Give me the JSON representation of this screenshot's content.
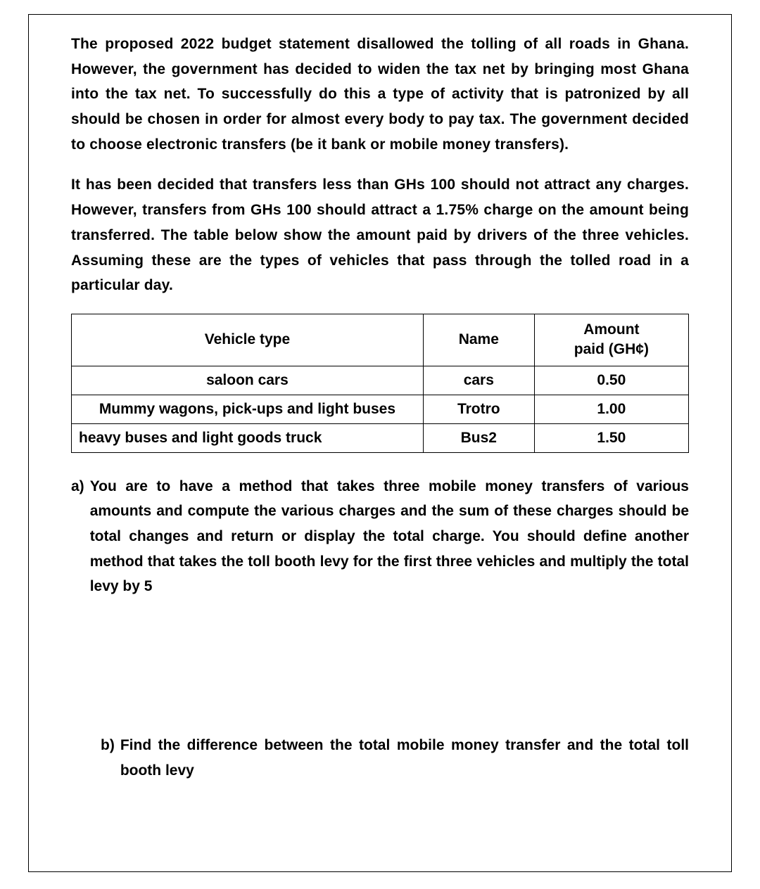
{
  "paragraph1": "The proposed 2022 budget statement disallowed the tolling of all roads in Ghana. However, the government has decided to widen the tax net by bringing most Ghana into the tax net. To successfully do this a type of activity that is patronized by all should be chosen in order for almost every body to pay tax. The government decided to choose electronic transfers (be it bank or mobile money transfers).",
  "paragraph2": "It has been decided that transfers less than GHs 100 should not attract any charges. However, transfers from GHs 100 should attract a 1.75% charge on the amount being transferred. The table below show the amount paid by drivers of the three vehicles. Assuming these are the types of vehicles that pass through the tolled road in a particular day.",
  "table": {
    "headers": {
      "vehicle_type": "Vehicle type",
      "name": "Name",
      "amount_line1": "Amount",
      "amount_line2": "paid (GH¢)"
    },
    "rows": [
      {
        "vehicle_type": "saloon cars",
        "name": "cars",
        "amount": "0.50",
        "align": "center"
      },
      {
        "vehicle_type": "Mummy wagons, pick-ups and light buses",
        "name": "Trotro",
        "amount": "1.00",
        "align": "center"
      },
      {
        "vehicle_type": "heavy buses and light goods truck",
        "name": "Bus2",
        "amount": "1.50",
        "align": "left"
      }
    ]
  },
  "question_a": {
    "label": "a)",
    "text": "You are to have a method that takes three mobile money transfers of various amounts and compute the various charges and the sum of these charges should be total changes and return or display the total charge. You should define another method that takes the toll booth levy for the first three vehicles and multiply the total levy by 5"
  },
  "question_b": {
    "label": "b)",
    "text": "Find the difference between the total mobile money transfer and the total toll booth levy"
  }
}
